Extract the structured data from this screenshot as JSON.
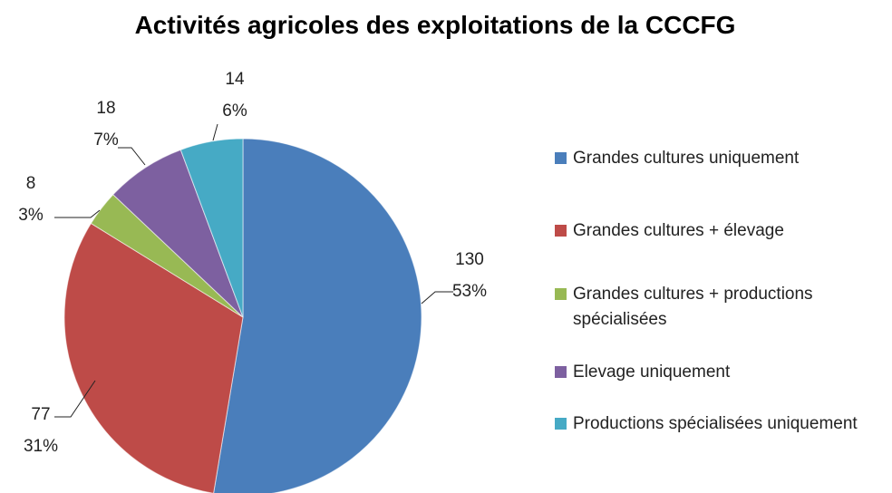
{
  "chart_data": {
    "type": "pie",
    "title": "Activités agricoles des exploitations de la CCCFG",
    "categories": [
      "Grandes cultures uniquement",
      "Grandes cultures + élevage",
      "Grandes cultures + productions spécialisées",
      "Elevage uniquement",
      "Productions spécialisées uniquement"
    ],
    "values": [
      130,
      77,
      8,
      18,
      14
    ],
    "percent_labels": [
      "53%",
      "31%",
      "3%",
      "7%",
      "6%"
    ],
    "colors": [
      "#4a7ebb",
      "#be4b48",
      "#98b954",
      "#7d60a0",
      "#46aac5"
    ],
    "legend": "right"
  }
}
